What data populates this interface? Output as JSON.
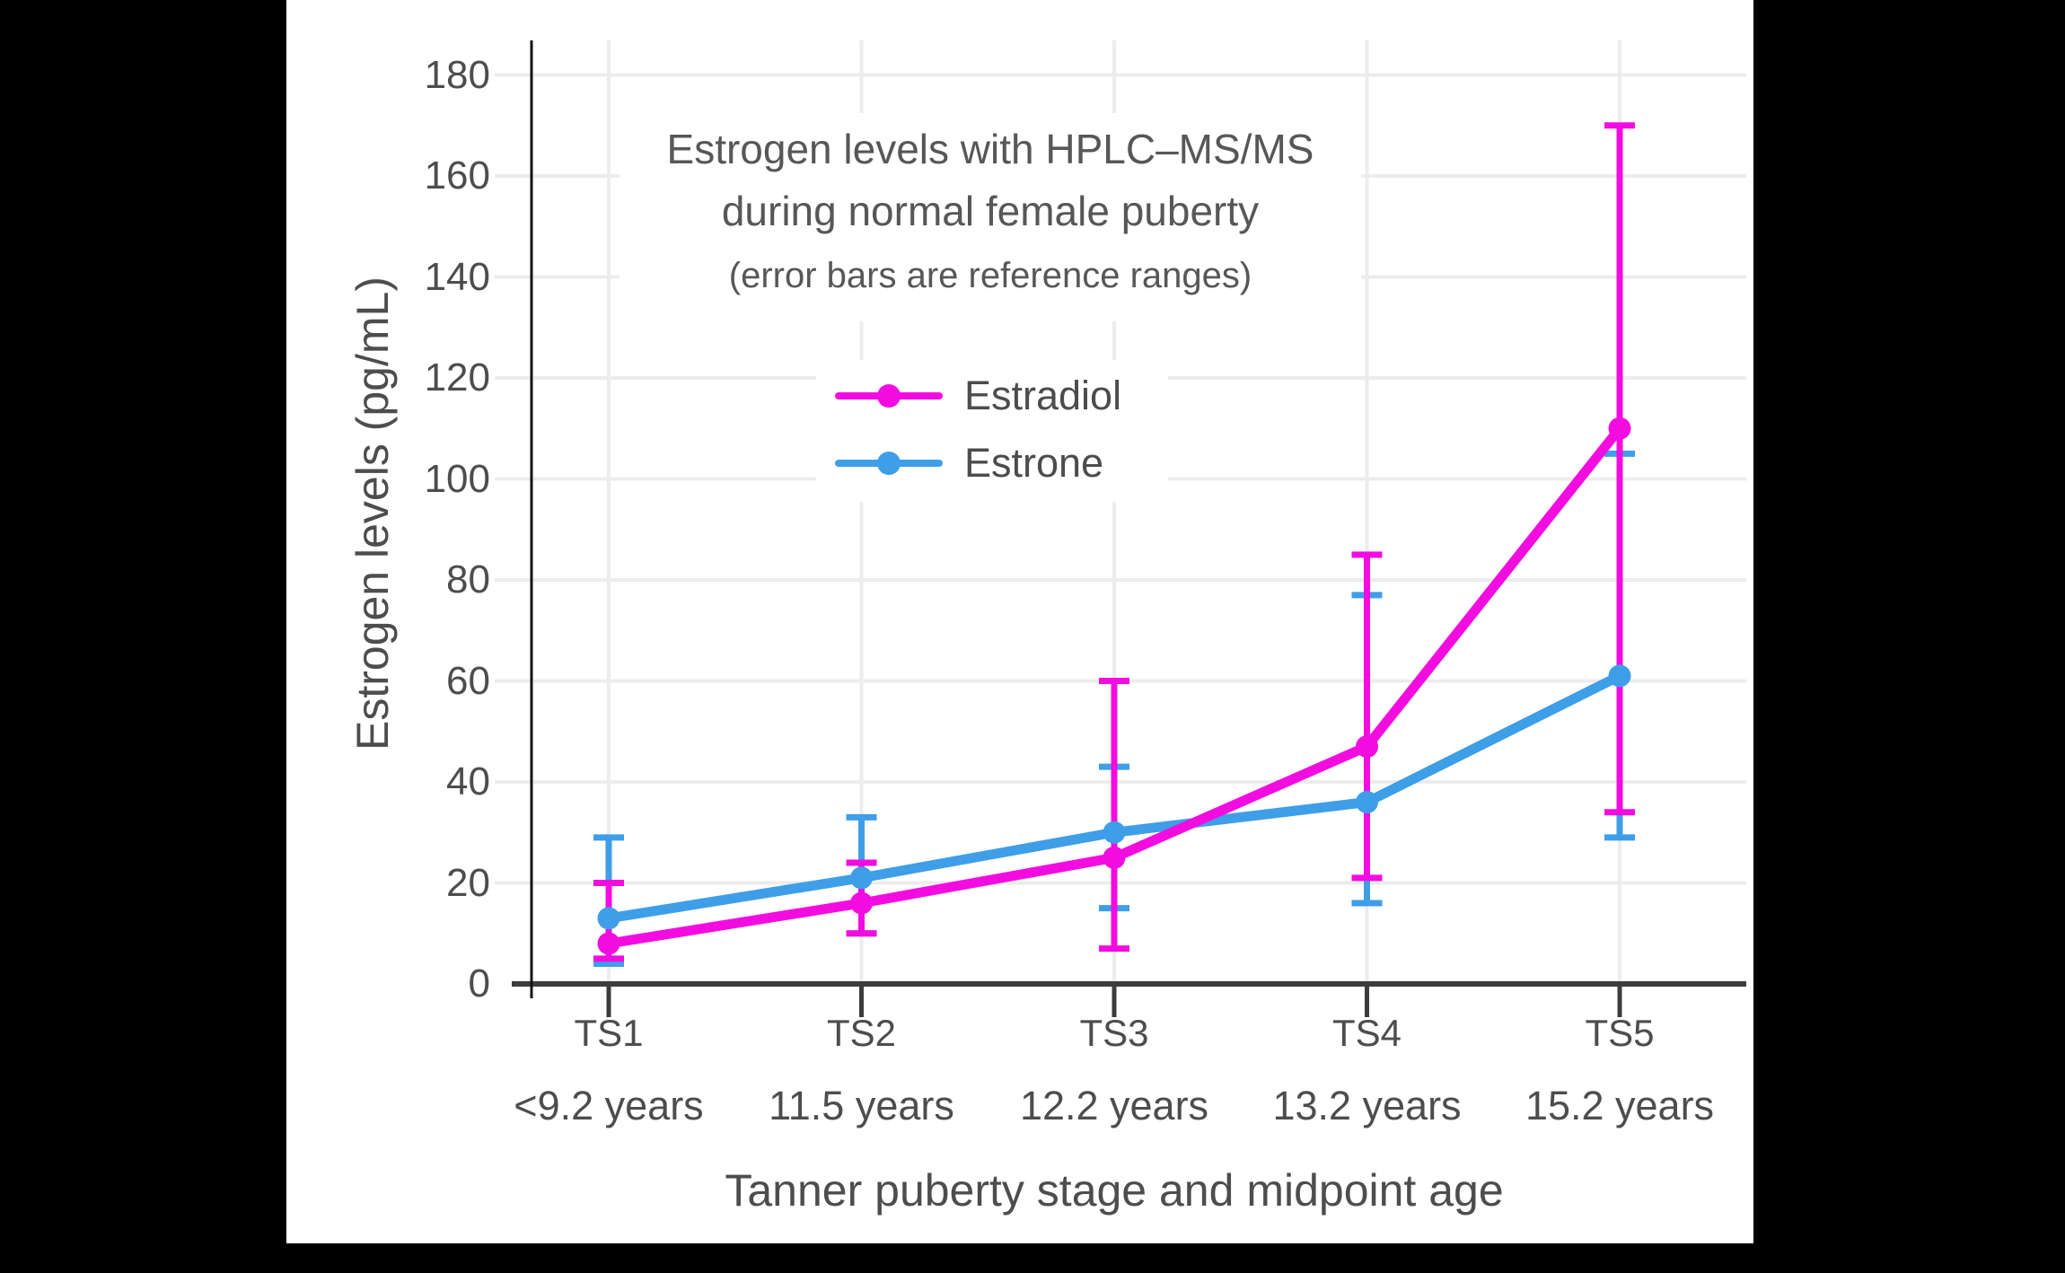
{
  "colors": {
    "background": "#000000",
    "panel": "#ffffff",
    "grid": "#ececec",
    "x_axis": "#3c3c3c",
    "y_axis": "#141414",
    "text": "#4d4d4d"
  },
  "chart_data": {
    "type": "line",
    "title": "Estrogen levels with HPLC–MS/MS during normal female puberty",
    "title_lines": [
      "Estrogen levels with HPLC–MS/MS",
      "during normal female puberty"
    ],
    "subtitle": "(error bars are reference ranges)",
    "xlabel": "Tanner puberty stage and midpoint age",
    "ylabel": "Estrogen levels (pg/mL)",
    "categories": [
      "TS1",
      "TS2",
      "TS3",
      "TS4",
      "TS5"
    ],
    "category_sublabels": [
      "<9.2 years",
      "11.5 years",
      "12.2 years",
      "13.2 years",
      "15.2 years"
    ],
    "yticks": [
      0,
      20,
      40,
      60,
      80,
      100,
      120,
      140,
      160,
      180
    ],
    "ylim": [
      0,
      187
    ],
    "grid": true,
    "legend_position": "inside-upper-left",
    "series": [
      {
        "name": "Estradiol",
        "color": "#f30ce0",
        "values": [
          8,
          16,
          25,
          47,
          110
        ],
        "range_low": [
          5,
          10,
          7,
          21,
          34
        ],
        "range_high": [
          20,
          24,
          60,
          85,
          170
        ]
      },
      {
        "name": "Estrone",
        "color": "#3f9ee8",
        "values": [
          13,
          21,
          30,
          36,
          61
        ],
        "range_low": [
          4,
          10,
          15,
          16,
          29
        ],
        "range_high": [
          29,
          33,
          43,
          77,
          105
        ]
      }
    ]
  }
}
